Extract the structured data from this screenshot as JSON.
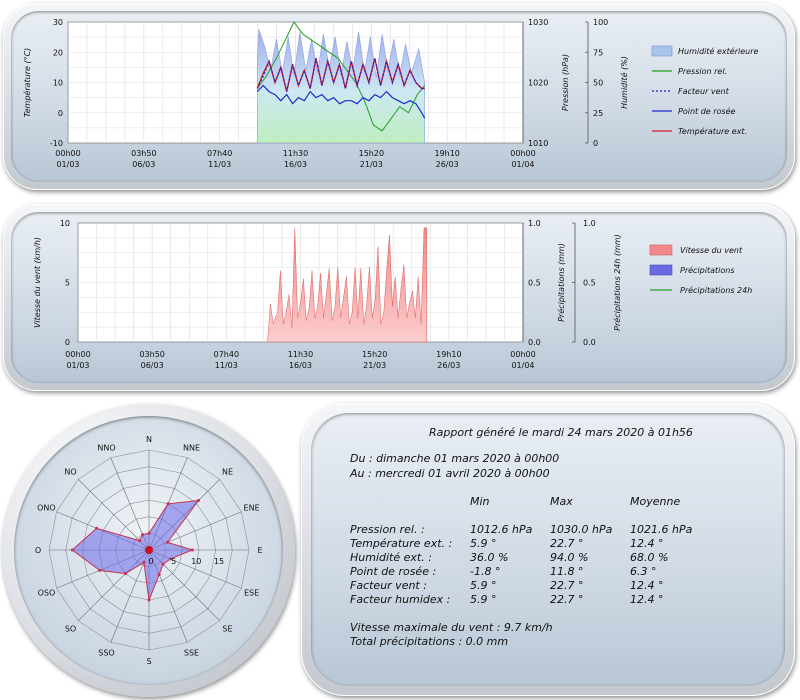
{
  "colors": {
    "humidity": "#8fa0e8",
    "pressure": "#22a022",
    "windchill": "#2222cc",
    "dewpoint": "#1a2ccc",
    "temperature": "#d41a2a",
    "wind": "#f28a8a",
    "rain": "#6a6ae0",
    "rain24": "#22a022"
  },
  "chart_data": [
    {
      "type": "line",
      "id": "temperature-chart",
      "x_tick_labels": [
        [
          "00h00",
          "01/03"
        ],
        [
          "03h50",
          "06/03"
        ],
        [
          "07h40",
          "11/03"
        ],
        [
          "11h30",
          "16/03"
        ],
        [
          "15h20",
          "21/03"
        ],
        [
          "19h10",
          "26/03"
        ],
        [
          "00h00",
          "01/04"
        ]
      ],
      "xlim_days": [
        0,
        31
      ],
      "left_axis": {
        "label": "Température (°C)",
        "range": [
          -10,
          30
        ],
        "ticks": [
          "30",
          "20",
          "10",
          "0",
          "-10"
        ]
      },
      "pressure_axis": {
        "label": "Pression (hPa)",
        "range": [
          1010,
          1030
        ],
        "ticks": [
          "1030",
          "1020",
          "1010"
        ]
      },
      "humidity_axis": {
        "label": "Humidité (%)",
        "range": [
          0,
          100
        ],
        "ticks": [
          "100",
          "75",
          "50",
          "25",
          "0"
        ]
      },
      "grid": true,
      "legend_position": "right",
      "series": [
        {
          "name": "Humidité extérieure",
          "axis": "humidity",
          "kind": "area",
          "x": [
            12.9,
            13.0,
            13.4,
            13.8,
            14.2,
            14.6,
            15.0,
            15.4,
            15.8,
            16.2,
            16.6,
            17.0,
            17.4,
            17.8,
            18.2,
            18.6,
            19.0,
            19.4,
            19.8,
            20.2,
            20.6,
            21.0,
            21.4,
            21.8,
            22.2,
            22.6,
            23.0,
            23.4,
            23.9,
            24.3
          ],
          "y": [
            72,
            94,
            80,
            60,
            86,
            58,
            88,
            56,
            92,
            60,
            86,
            58,
            90,
            62,
            88,
            56,
            84,
            60,
            92,
            58,
            88,
            54,
            90,
            60,
            86,
            56,
            82,
            58,
            78,
            50
          ]
        },
        {
          "name": "Pression rel.",
          "axis": "pressure",
          "kind": "line",
          "x": [
            12.9,
            13.5,
            14.2,
            14.8,
            15.4,
            16.0,
            16.6,
            17.2,
            17.8,
            18.4,
            19.0,
            19.6,
            20.2,
            20.8,
            21.4,
            22.0,
            22.6,
            23.2,
            23.8,
            24.3
          ],
          "y": [
            1019,
            1021,
            1024,
            1027,
            1030,
            1028,
            1027,
            1026,
            1025,
            1024,
            1022,
            1020,
            1017,
            1013,
            1012,
            1014,
            1016,
            1015,
            1018,
            1019.5
          ]
        },
        {
          "name": "Facteur vent",
          "axis": "left",
          "kind": "dotted",
          "x": [
            12.9,
            13.3,
            13.7,
            14.1,
            14.5,
            14.9,
            15.3,
            15.7,
            16.1,
            16.5,
            16.9,
            17.3,
            17.7,
            18.1,
            18.5,
            18.9,
            19.3,
            19.7,
            20.1,
            20.5,
            20.9,
            21.3,
            21.7,
            22.1,
            22.5,
            22.9,
            23.3,
            23.7,
            24.1,
            24.3
          ],
          "y": [
            8,
            12,
            17,
            10,
            15,
            7,
            16,
            9,
            14,
            8,
            18,
            9,
            17,
            10,
            16,
            8,
            17,
            9,
            16,
            10,
            18,
            9,
            17,
            10,
            16,
            9,
            14,
            10,
            8,
            8
          ]
        },
        {
          "name": "Point de rosée",
          "axis": "left",
          "kind": "line",
          "x": [
            12.9,
            13.3,
            13.7,
            14.1,
            14.5,
            14.9,
            15.3,
            15.7,
            16.1,
            16.5,
            16.9,
            17.3,
            17.7,
            18.1,
            18.5,
            18.9,
            19.3,
            19.7,
            20.1,
            20.5,
            20.9,
            21.3,
            21.7,
            22.1,
            22.5,
            22.9,
            23.3,
            23.7,
            24.1,
            24.3
          ],
          "y": [
            7,
            9,
            7,
            6,
            4,
            6,
            3,
            5,
            4,
            7,
            5,
            6,
            4,
            5,
            3,
            4,
            4,
            3,
            5,
            4,
            6,
            5,
            7,
            5,
            4,
            3,
            4,
            3,
            0,
            -1.8
          ]
        },
        {
          "name": "Température ext.",
          "axis": "left",
          "kind": "line",
          "x": [
            12.9,
            13.3,
            13.7,
            14.1,
            14.5,
            14.9,
            15.3,
            15.7,
            16.1,
            16.5,
            16.9,
            17.3,
            17.7,
            18.1,
            18.5,
            18.9,
            19.3,
            19.7,
            20.1,
            20.5,
            20.9,
            21.3,
            21.7,
            22.1,
            22.5,
            22.9,
            23.3,
            23.7,
            24.1,
            24.3
          ],
          "y": [
            8,
            13,
            17,
            10,
            15,
            7,
            16,
            9,
            14,
            8,
            18,
            9,
            17,
            10,
            16,
            8,
            17,
            9,
            16,
            10,
            18,
            9,
            17,
            10,
            16,
            9,
            14,
            10,
            8,
            8
          ]
        }
      ]
    },
    {
      "type": "area",
      "id": "wind-chart",
      "x_tick_labels": [
        [
          "00h00",
          "01/03"
        ],
        [
          "03h50",
          "06/03"
        ],
        [
          "07h40",
          "11/03"
        ],
        [
          "11h30",
          "16/03"
        ],
        [
          "15h20",
          "21/03"
        ],
        [
          "19h10",
          "26/03"
        ],
        [
          "00h00",
          "01/04"
        ]
      ],
      "xlim_days": [
        0,
        31
      ],
      "left_axis": {
        "label": "Vitesse du vent (km/h)",
        "range": [
          0,
          10
        ],
        "ticks": [
          "10",
          "5",
          "0"
        ]
      },
      "rain_axis": {
        "label": "Précipitations (mm)",
        "range": [
          0,
          1
        ],
        "ticks": [
          "1.0",
          "0.5",
          "0.0"
        ]
      },
      "rain24_axis": {
        "label": "Précipitations 24h (mm)",
        "range": [
          0,
          1
        ],
        "ticks": [
          "1.0",
          "0.5",
          "0.0"
        ]
      },
      "grid": true,
      "legend_position": "right",
      "series": [
        {
          "name": "Vitesse du vent",
          "axis": "left",
          "kind": "area",
          "x": [
            13.2,
            13.4,
            13.6,
            13.9,
            14.1,
            14.3,
            14.5,
            14.7,
            14.9,
            15.1,
            15.3,
            15.5,
            15.7,
            15.9,
            16.1,
            16.3,
            16.5,
            16.7,
            16.9,
            17.1,
            17.3,
            17.5,
            17.7,
            17.9,
            18.1,
            18.3,
            18.5,
            18.7,
            18.9,
            19.1,
            19.3,
            19.5,
            19.7,
            19.9,
            20.1,
            20.3,
            20.5,
            20.7,
            20.9,
            21.1,
            21.3,
            21.5,
            21.7,
            21.9,
            22.1,
            22.3,
            22.5,
            22.7,
            22.9,
            23.1,
            23.3,
            23.5,
            23.7,
            23.9,
            24.1,
            24.3
          ],
          "y": [
            0,
            3.2,
            1.5,
            2.5,
            6,
            1.5,
            2.5,
            4,
            1.2,
            9.6,
            2,
            3.3,
            5.3,
            1.8,
            2.8,
            6,
            2,
            3,
            5.8,
            2,
            4,
            6.2,
            1.8,
            3,
            6.3,
            2,
            3.8,
            5.5,
            1.5,
            2.5,
            6.2,
            2,
            6.2,
            1.5,
            3,
            6.3,
            2,
            3.5,
            8,
            1.5,
            2.5,
            6,
            9,
            3,
            5.5,
            2,
            4.5,
            6.5,
            2,
            3.3,
            4.3,
            2,
            5.5,
            1.5,
            9.6,
            9.6
          ]
        },
        {
          "name": "Précipitations",
          "axis": "rain",
          "kind": "area",
          "x": [],
          "y": []
        },
        {
          "name": "Précipitations 24h",
          "axis": "rain24",
          "kind": "line",
          "x": [],
          "y": []
        }
      ]
    },
    {
      "type": "radar",
      "id": "wind-rose",
      "directions": [
        "N",
        "NNE",
        "NE",
        "ENE",
        "E",
        "ESE",
        "SE",
        "SSE",
        "S",
        "SSO",
        "SO",
        "OSO",
        "O",
        "ONO",
        "NO",
        "NNO"
      ],
      "radial_ticks": [
        "0",
        "5",
        "10",
        "15"
      ],
      "rmax": 15,
      "series": [
        {
          "name": "Vent",
          "values": [
            2.5,
            7.5,
            10.5,
            3.0,
            6.5,
            3.5,
            3.0,
            4.0,
            7.5,
            2.0,
            5.0,
            8.0,
            11.5,
            8.5,
            2.0,
            2.5
          ]
        }
      ]
    }
  ],
  "report": {
    "title": "Rapport généré le mardi 24 mars 2020 à 01h56",
    "from": "Du : dimanche 01 mars 2020 à 00h00",
    "to": "Au : mercredi 01 avril 2020 à 00h00",
    "headers": {
      "min": "Min",
      "max": "Max",
      "avg": "Moyenne"
    },
    "rows": [
      {
        "label": "Pression rel. :",
        "min": "1012.6 hPa",
        "max": "1030.0 hPa",
        "avg": "1021.6 hPa"
      },
      {
        "label": "Température ext. :",
        "min": "5.9 °",
        "max": "22.7 °",
        "avg": "12.4 °"
      },
      {
        "label": "Humidité ext. :",
        "min": "36.0 %",
        "max": "94.0 %",
        "avg": "68.0 %"
      },
      {
        "label": "Point de rosée :",
        "min": "-1.8 °",
        "max": "11.8 °",
        "avg": "6.3 °"
      },
      {
        "label": "Facteur vent :",
        "min": "5.9 °",
        "max": "22.7 °",
        "avg": "12.4 °"
      },
      {
        "label": "Facteur humidex :",
        "min": "5.9 °",
        "max": "22.7 °",
        "avg": "12.4 °"
      }
    ],
    "max_wind": "Vitesse maximale du vent : 9.7 km/h",
    "total_rain": "Total précipitations : 0.0 mm"
  }
}
